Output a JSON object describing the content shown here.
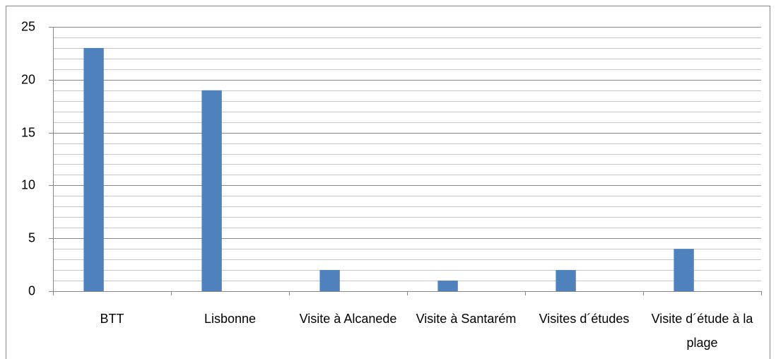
{
  "chart_data": {
    "type": "bar",
    "categories": [
      "BTT",
      "Lisbonne",
      "Visite à Alcanede",
      "Visite à Santarém",
      "Visites d´études",
      "Visite d´étude à la plage"
    ],
    "values": [
      23,
      19,
      2,
      1,
      2,
      4
    ],
    "color": "#4f81bd",
    "ylim": [
      0,
      25
    ],
    "yticks": [
      0,
      5,
      10,
      15,
      20,
      25
    ],
    "minor_yticks": [
      1,
      2,
      3,
      4,
      6,
      7,
      8,
      9,
      11,
      12,
      13,
      14,
      16,
      17,
      18,
      19,
      21,
      22,
      23,
      24
    ],
    "grid": true
  }
}
